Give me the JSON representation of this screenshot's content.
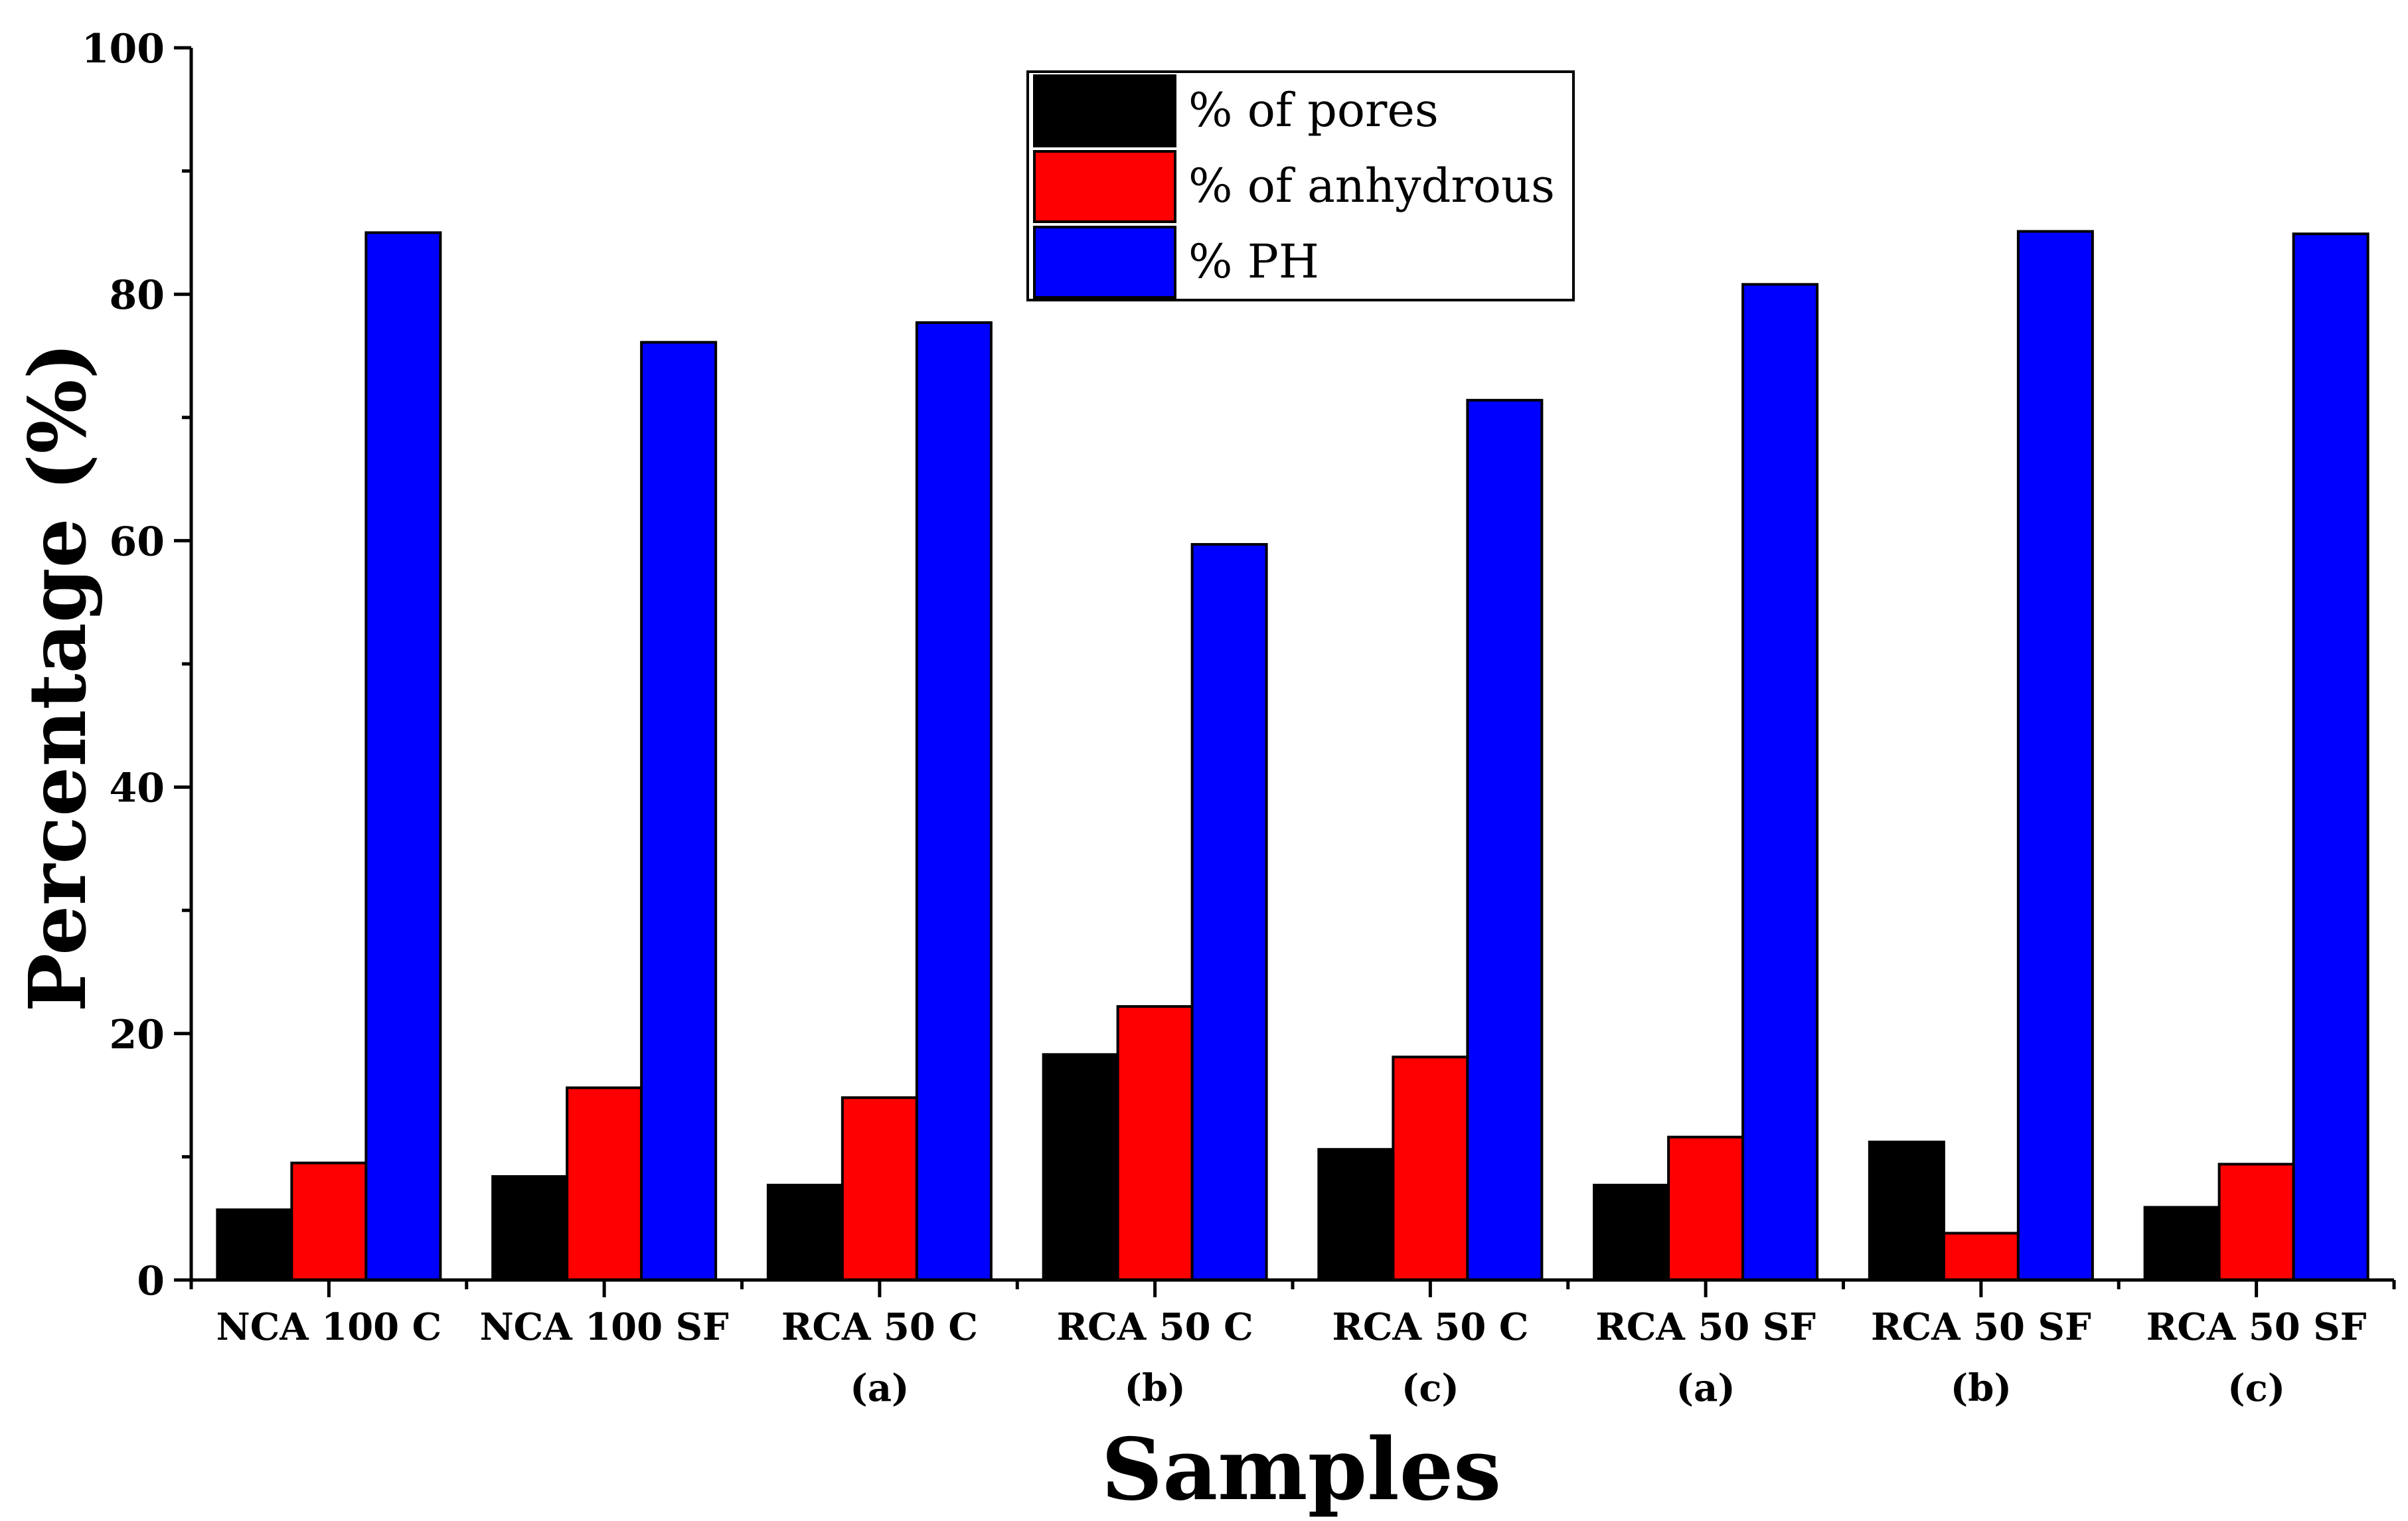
{
  "chart_data": {
    "type": "bar",
    "title": "",
    "xlabel": "Samples",
    "ylabel": "Percentage (%)",
    "ylim": [
      0,
      100
    ],
    "yticks": [
      "0",
      "20",
      "40",
      "60",
      "80",
      "100"
    ],
    "categories": [
      [
        "NCA 100 C"
      ],
      [
        "NCA 100 SF"
      ],
      [
        "RCA 50 C",
        "(a)"
      ],
      [
        "RCA 50 C",
        "(b)"
      ],
      [
        "RCA 50 C",
        "(c)"
      ],
      [
        "RCA 50 SF",
        "(a)"
      ],
      [
        "RCA 50 SF",
        "(b)"
      ],
      [
        "RCA 50 SF",
        "(c)"
      ]
    ],
    "series": [
      {
        "name": "% of pores",
        "color": "#000000",
        "values": [
          5.7,
          8.4,
          7.7,
          18.3,
          10.6,
          7.7,
          11.2,
          5.9
        ]
      },
      {
        "name": "% of anhydrous",
        "color": "#ff0000",
        "values": [
          9.5,
          15.6,
          14.8,
          22.2,
          18.1,
          11.6,
          3.8,
          9.4
        ]
      },
      {
        "name": "% PH",
        "color": "#0000ff",
        "values": [
          85.0,
          76.1,
          77.7,
          59.7,
          71.4,
          80.8,
          85.1,
          84.9
        ]
      }
    ],
    "legend_position": "top-center",
    "grid": false
  }
}
